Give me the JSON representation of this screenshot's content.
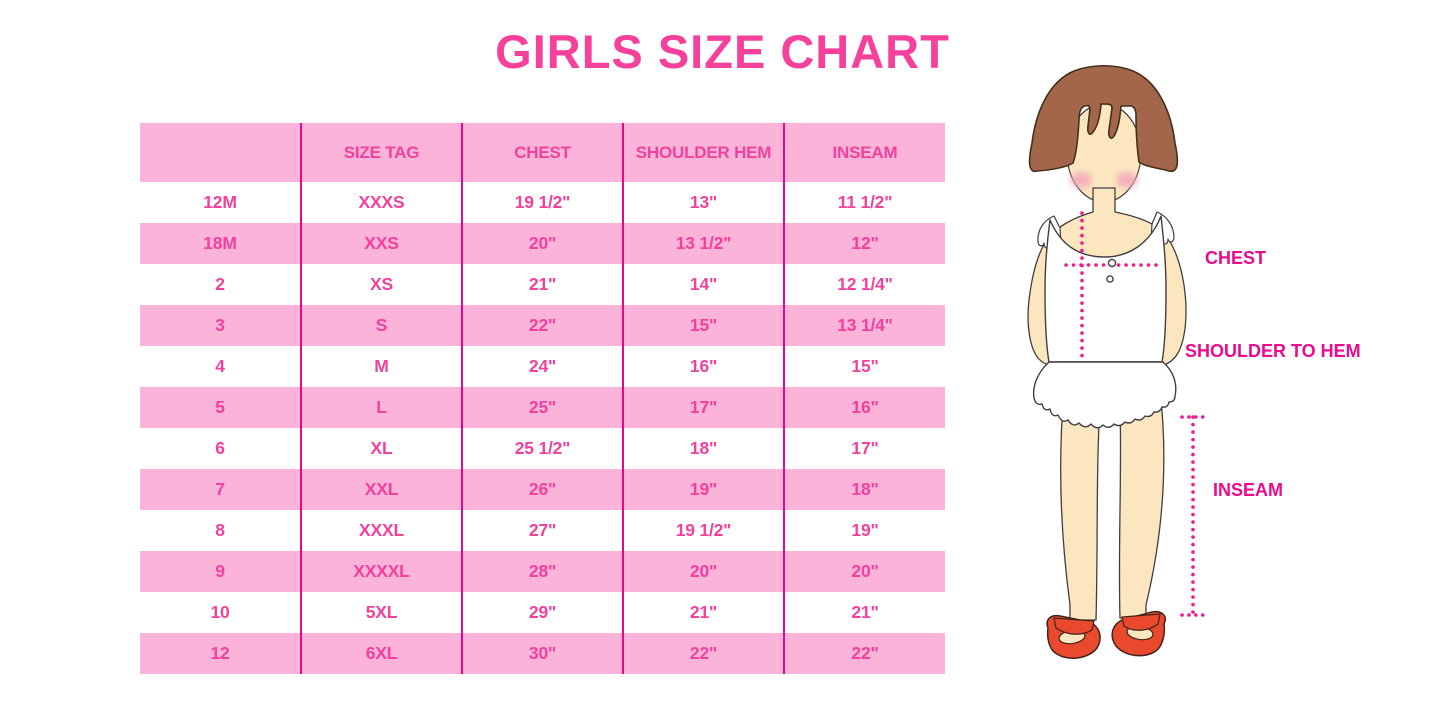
{
  "title": "GIRLS SIZE CHART",
  "chart_data": {
    "type": "table",
    "title": "GIRLS SIZE CHART",
    "columns": [
      "",
      "SIZE TAG",
      "CHEST",
      "SHOULDER HEM",
      "INSEAM"
    ],
    "rows": [
      [
        "12M",
        "XXXS",
        "19 1/2\"",
        "13\"",
        "11 1/2\""
      ],
      [
        "18M",
        "XXS",
        "20\"",
        "13 1/2\"",
        "12\""
      ],
      [
        "2",
        "XS",
        "21\"",
        "14\"",
        "12 1/4\""
      ],
      [
        "3",
        "S",
        "22\"",
        "15\"",
        "13 1/4\""
      ],
      [
        "4",
        "M",
        "24\"",
        "16\"",
        "15\""
      ],
      [
        "5",
        "L",
        "25\"",
        "17\"",
        "16\""
      ],
      [
        "6",
        "XL",
        "25 1/2\"",
        "18\"",
        "17\""
      ],
      [
        "7",
        "XXL",
        "26\"",
        "19\"",
        "18\""
      ],
      [
        "8",
        "XXXL",
        "27\"",
        "19 1/2\"",
        "19\""
      ],
      [
        "9",
        "XXXXL",
        "28\"",
        "20\"",
        "20\""
      ],
      [
        "10",
        "5XL",
        "29\"",
        "21\"",
        "21\""
      ],
      [
        "12",
        "6XL",
        "30\"",
        "22\"",
        "22\""
      ]
    ],
    "layout": {
      "row_stripe": "pink/white alternating",
      "grid": "vertical magenta column separators only"
    }
  },
  "diagram": {
    "chest_label": "CHEST",
    "shoulder_to_hem_label": "SHOULDER TO HEM",
    "inseam_label": "INSEAM"
  },
  "colors": {
    "title_pink": "#F5419C",
    "row_pink": "#FCB3D9",
    "grid_magenta": "#E8078A",
    "table_text_pink": "#F2419C",
    "label_magenta": "#EB0B8D",
    "dotted_line_magenta": "#EC1E8C",
    "hair_brown": "#A4664A",
    "skin_tone": "#FCE6C0",
    "blush_pink": "#F3A6BC",
    "shoe_red": "#E9492C"
  }
}
